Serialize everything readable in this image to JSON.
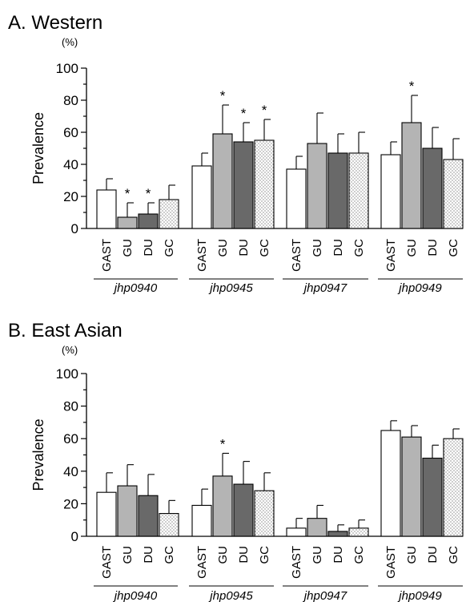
{
  "figure": {
    "bar_colors": {
      "GAST": "#ffffff",
      "GU": "#b4b4b4",
      "DU": "#696969",
      "GC": "dots"
    }
  },
  "chart_data": [
    {
      "type": "bar",
      "title": "A. Western",
      "unit": "(%)",
      "ylabel": "Prevalence",
      "ylim": [
        0,
        100
      ],
      "yticks": [
        "0",
        "20",
        "40",
        "60",
        "80",
        "100"
      ],
      "categories": [
        "GAST",
        "GU",
        "DU",
        "GC"
      ],
      "groups": [
        "jhp0940",
        "jhp0945",
        "jhp0947",
        "jhp0949"
      ],
      "significance_marker": "*",
      "series": [
        {
          "group": "jhp0940",
          "values": [
            24,
            7,
            9,
            18
          ],
          "errors": [
            7,
            9,
            7,
            9
          ],
          "significant": [
            false,
            true,
            true,
            false
          ]
        },
        {
          "group": "jhp0945",
          "values": [
            39,
            59,
            54,
            55
          ],
          "errors": [
            8,
            18,
            12,
            13
          ],
          "significant": [
            false,
            true,
            true,
            true
          ]
        },
        {
          "group": "jhp0947",
          "values": [
            37,
            53,
            47,
            47
          ],
          "errors": [
            8,
            19,
            12,
            13
          ],
          "significant": [
            false,
            false,
            false,
            false
          ]
        },
        {
          "group": "jhp0949",
          "values": [
            46,
            66,
            50,
            43
          ],
          "errors": [
            8,
            17,
            13,
            13
          ],
          "significant": [
            false,
            true,
            false,
            false
          ]
        }
      ]
    },
    {
      "type": "bar",
      "title": "B. East Asian",
      "unit": "(%)",
      "ylabel": "Prevalence",
      "ylim": [
        0,
        100
      ],
      "yticks": [
        "0",
        "20",
        "40",
        "60",
        "80",
        "100"
      ],
      "categories": [
        "GAST",
        "GU",
        "DU",
        "GC"
      ],
      "groups": [
        "jhp0940",
        "jhp0945",
        "jhp0947",
        "jhp0949"
      ],
      "significance_marker": "*",
      "series": [
        {
          "group": "jhp0940",
          "values": [
            27,
            31,
            25,
            14
          ],
          "errors": [
            12,
            13,
            13,
            8
          ],
          "significant": [
            false,
            false,
            false,
            false
          ]
        },
        {
          "group": "jhp0945",
          "values": [
            19,
            37,
            32,
            28
          ],
          "errors": [
            10,
            14,
            14,
            11
          ],
          "significant": [
            false,
            true,
            false,
            false
          ]
        },
        {
          "group": "jhp0947",
          "values": [
            5,
            11,
            3,
            5
          ],
          "errors": [
            6,
            8,
            4,
            5
          ],
          "significant": [
            false,
            false,
            false,
            false
          ]
        },
        {
          "group": "jhp0949",
          "values": [
            65,
            61,
            48,
            60
          ],
          "errors": [
            6,
            7,
            8,
            6
          ],
          "significant": [
            false,
            false,
            false,
            false
          ]
        }
      ]
    }
  ]
}
